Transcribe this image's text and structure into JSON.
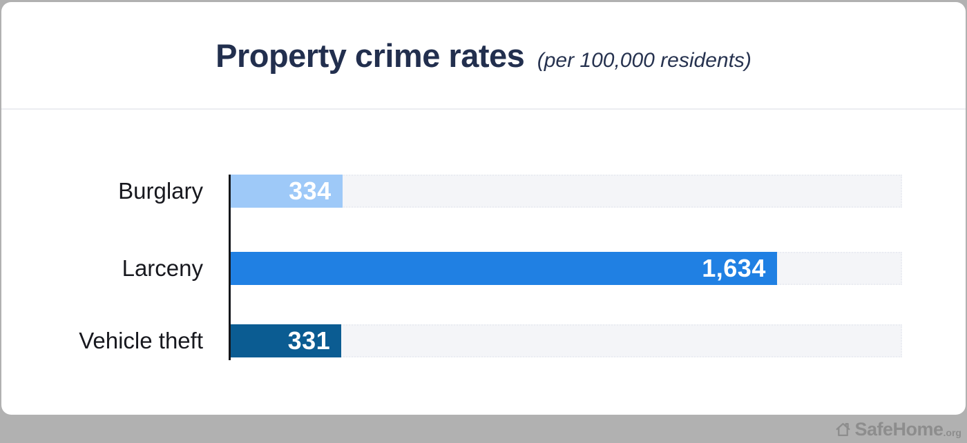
{
  "header": {
    "title": "Property crime rates",
    "subtitle": "(per 100,000 residents)"
  },
  "chart_data": {
    "type": "bar",
    "orientation": "horizontal",
    "title": "Property crime rates",
    "subtitle": "(per 100,000 residents)",
    "categories": [
      "Burglary",
      "Larceny",
      "Vehicle theft"
    ],
    "values": [
      334,
      1634,
      331
    ],
    "value_labels": [
      "334",
      "1,634",
      "331"
    ],
    "bar_colors": [
      "#9ec9f8",
      "#2080e3",
      "#0b5c92"
    ],
    "track_color": "#f4f5f8",
    "axis_color": "#14161b",
    "xlim": [
      0,
      2000
    ],
    "grid": false,
    "legend": false,
    "value_label_position": "inside-end"
  },
  "footer": {
    "brand": "SafeHome",
    "brand_suffix": ".org",
    "icon": "home-outline-icon",
    "strip_color": "#b1b1b1",
    "logo_color": "#8d8d8d"
  }
}
